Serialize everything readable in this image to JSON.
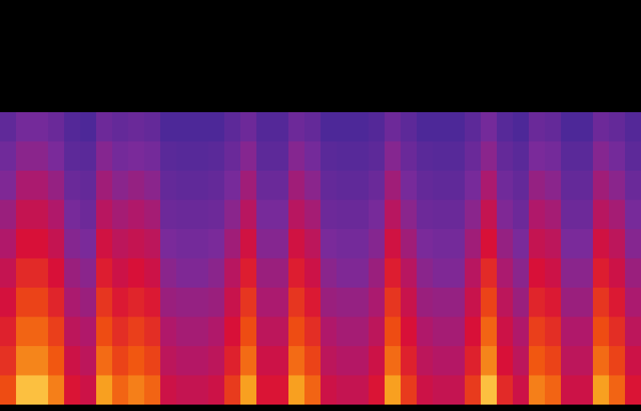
{
  "chart_data": {
    "type": "heatmap",
    "tick_labels": false,
    "zlim": [
      0,
      100
    ],
    "values": [
      [
        37,
        42,
        46,
        51,
        55,
        60,
        64,
        69,
        73,
        79
      ],
      [
        43,
        48,
        54,
        60,
        65,
        71,
        77,
        83,
        88,
        96
      ],
      [
        43,
        48,
        54,
        60,
        65,
        71,
        77,
        83,
        88,
        96
      ],
      [
        40,
        45,
        50,
        55,
        60,
        65,
        70,
        76,
        81,
        87
      ],
      [
        33,
        36,
        40,
        44,
        47,
        51,
        54,
        58,
        62,
        66
      ],
      [
        31,
        35,
        38,
        41,
        45,
        48,
        51,
        55,
        58,
        62
      ],
      [
        41,
        47,
        52,
        57,
        63,
        68,
        74,
        79,
        84,
        92
      ],
      [
        38,
        43,
        48,
        53,
        58,
        62,
        67,
        72,
        77,
        83
      ],
      [
        40,
        45,
        50,
        55,
        60,
        65,
        70,
        76,
        81,
        87
      ],
      [
        38,
        43,
        48,
        53,
        58,
        62,
        67,
        72,
        77,
        83
      ],
      [
        31,
        35,
        38,
        41,
        45,
        48,
        51,
        55,
        58,
        62
      ],
      [
        31,
        34,
        37,
        40,
        43,
        46,
        50,
        53,
        56,
        60
      ],
      [
        31,
        34,
        37,
        40,
        43,
        46,
        50,
        53,
        56,
        60
      ],
      [
        31,
        35,
        38,
        41,
        45,
        48,
        51,
        55,
        58,
        62
      ],
      [
        36,
        40,
        44,
        48,
        52,
        57,
        61,
        65,
        69,
        75
      ],
      [
        41,
        47,
        52,
        57,
        63,
        68,
        74,
        79,
        84,
        92
      ],
      [
        33,
        36,
        40,
        44,
        47,
        51,
        54,
        58,
        62,
        66
      ],
      [
        33,
        36,
        40,
        44,
        47,
        51,
        54,
        58,
        62,
        66
      ],
      [
        41,
        47,
        52,
        57,
        63,
        68,
        74,
        79,
        84,
        92
      ],
      [
        38,
        43,
        48,
        53,
        58,
        62,
        67,
        72,
        77,
        83
      ],
      [
        31,
        35,
        38,
        41,
        45,
        48,
        51,
        55,
        58,
        62
      ],
      [
        31,
        34,
        37,
        40,
        43,
        46,
        50,
        53,
        56,
        60
      ],
      [
        31,
        34,
        37,
        40,
        43,
        46,
        50,
        53,
        56,
        60
      ],
      [
        33,
        36,
        40,
        44,
        47,
        51,
        54,
        58,
        62,
        66
      ],
      [
        41,
        47,
        52,
        57,
        63,
        68,
        74,
        79,
        84,
        92
      ],
      [
        36,
        40,
        44,
        48,
        52,
        57,
        61,
        65,
        69,
        75
      ],
      [
        31,
        35,
        38,
        41,
        45,
        48,
        51,
        55,
        58,
        62
      ],
      [
        31,
        34,
        37,
        40,
        43,
        46,
        50,
        53,
        56,
        60
      ],
      [
        31,
        34,
        37,
        40,
        43,
        46,
        50,
        53,
        56,
        60
      ],
      [
        36,
        40,
        44,
        48,
        52,
        57,
        61,
        65,
        69,
        75
      ],
      [
        43,
        48,
        54,
        60,
        65,
        71,
        77,
        83,
        88,
        96
      ],
      [
        34,
        38,
        42,
        46,
        50,
        54,
        58,
        62,
        65,
        71
      ],
      [
        31,
        35,
        38,
        41,
        45,
        48,
        51,
        55,
        58,
        62
      ],
      [
        40,
        45,
        50,
        55,
        60,
        65,
        70,
        76,
        81,
        87
      ],
      [
        38,
        43,
        48,
        53,
        58,
        62,
        67,
        72,
        77,
        83
      ],
      [
        31,
        35,
        38,
        41,
        45,
        48,
        51,
        55,
        58,
        62
      ],
      [
        31,
        35,
        38,
        41,
        45,
        48,
        51,
        55,
        58,
        62
      ],
      [
        41,
        47,
        52,
        57,
        63,
        68,
        74,
        79,
        84,
        92
      ],
      [
        38,
        43,
        48,
        53,
        58,
        62,
        67,
        72,
        77,
        83
      ],
      [
        33,
        36,
        40,
        44,
        47,
        51,
        54,
        58,
        62,
        66
      ]
    ]
  }
}
